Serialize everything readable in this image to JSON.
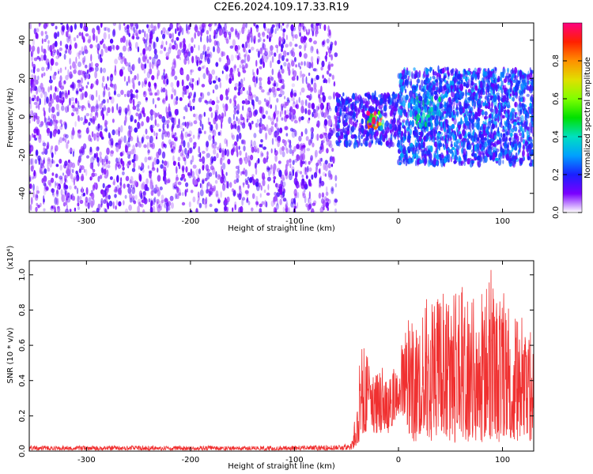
{
  "title": "C2E6.2024.109.17.33.R19",
  "colors": {
    "spectrum_low": "#7a00ff",
    "snr_line": "#f03030",
    "axis": "#000000"
  },
  "chart_data": [
    {
      "type": "heatmap",
      "xlabel": "Height of straight line (km)",
      "ylabel": "Frequency (Hz)",
      "xlim": [
        -355,
        130
      ],
      "ylim": [
        -50,
        49
      ],
      "xticks": [
        -300,
        -200,
        -100,
        0,
        100
      ],
      "yticks": [
        -40,
        -20,
        0,
        20,
        40
      ],
      "xtick_labels": [
        "-300",
        "-200",
        "-100",
        "0",
        "100"
      ],
      "ytick_labels": [
        "-40",
        "-20",
        "0",
        "20",
        "40"
      ],
      "colorbar": {
        "label": "Normalized spectral amplitude",
        "range": [
          0,
          1
        ],
        "ticks": [
          0.0,
          0.2,
          0.4,
          0.6,
          0.8
        ],
        "tick_labels": [
          "0.0",
          "0.2",
          "0.4",
          "0.6",
          "0.8"
        ]
      },
      "regions": [
        {
          "x_range": [
            -355,
            -60
          ],
          "freq_range": [
            -50,
            49
          ],
          "amplitude": 0.12
        },
        {
          "x_range": [
            -60,
            0
          ],
          "freq_range": [
            -15,
            12
          ],
          "amplitude": 0.2
        },
        {
          "x_range": [
            -30,
            -15
          ],
          "freq_range": [
            -6,
            2
          ],
          "amplitude": 0.8
        },
        {
          "x_range": [
            0,
            130
          ],
          "freq_range": [
            -25,
            25
          ],
          "amplitude": 0.25
        },
        {
          "x_range": [
            15,
            40
          ],
          "freq_range": [
            -5,
            10
          ],
          "amplitude": 0.35
        }
      ]
    },
    {
      "type": "line",
      "xlabel": "Height of straight line (km)",
      "ylabel": "SNR (10 * v/v)",
      "y_multiplier": "(x10⁴)",
      "xlim": [
        -355,
        130
      ],
      "ylim": [
        0,
        1.08
      ],
      "xticks": [
        -300,
        -200,
        -100,
        0,
        100
      ],
      "yticks": [
        0.0,
        0.2,
        0.4,
        0.6,
        0.8,
        1.0
      ],
      "xtick_labels": [
        "-300",
        "-200",
        "-100",
        "0",
        "100"
      ],
      "ytick_labels": [
        "0.0",
        "0.2",
        "0.4",
        "0.6",
        "0.8",
        "1.0"
      ],
      "series": [
        {
          "x": [
            -355,
            -300,
            -200,
            -100,
            -45,
            -40,
            -35,
            -30,
            -25,
            -20,
            -15,
            -10,
            -5,
            0,
            5,
            10,
            15,
            20,
            30,
            40,
            50,
            60,
            70,
            80,
            90,
            100,
            110,
            120,
            130
          ],
          "y_mean": [
            0.02,
            0.02,
            0.015,
            0.02,
            0.02,
            0.1,
            0.3,
            0.35,
            0.25,
            0.22,
            0.3,
            0.25,
            0.3,
            0.28,
            0.32,
            0.38,
            0.42,
            0.4,
            0.42,
            0.45,
            0.42,
            0.48,
            0.45,
            0.42,
            0.38,
            0.38,
            0.35,
            0.34,
            0.35
          ],
          "y_max": [
            0.03,
            0.03,
            0.03,
            0.03,
            0.04,
            0.35,
            0.62,
            0.55,
            0.45,
            0.45,
            0.5,
            0.45,
            0.5,
            0.5,
            0.7,
            0.75,
            0.82,
            0.9,
            0.88,
            0.92,
            0.86,
            0.94,
            0.88,
            0.9,
            1.08,
            0.95,
            0.75,
            0.78,
            0.65
          ],
          "y_min": [
            0.005,
            0.005,
            0.005,
            0.005,
            0.005,
            0.03,
            0.08,
            0.12,
            0.1,
            0.08,
            0.12,
            0.1,
            0.15,
            0.2,
            0.2,
            0.1,
            0.05,
            0.05,
            0.04,
            0.05,
            0.04,
            0.04,
            0.05,
            0.04,
            0.05,
            0.05,
            0.05,
            0.05,
            0.05
          ]
        }
      ]
    }
  ]
}
